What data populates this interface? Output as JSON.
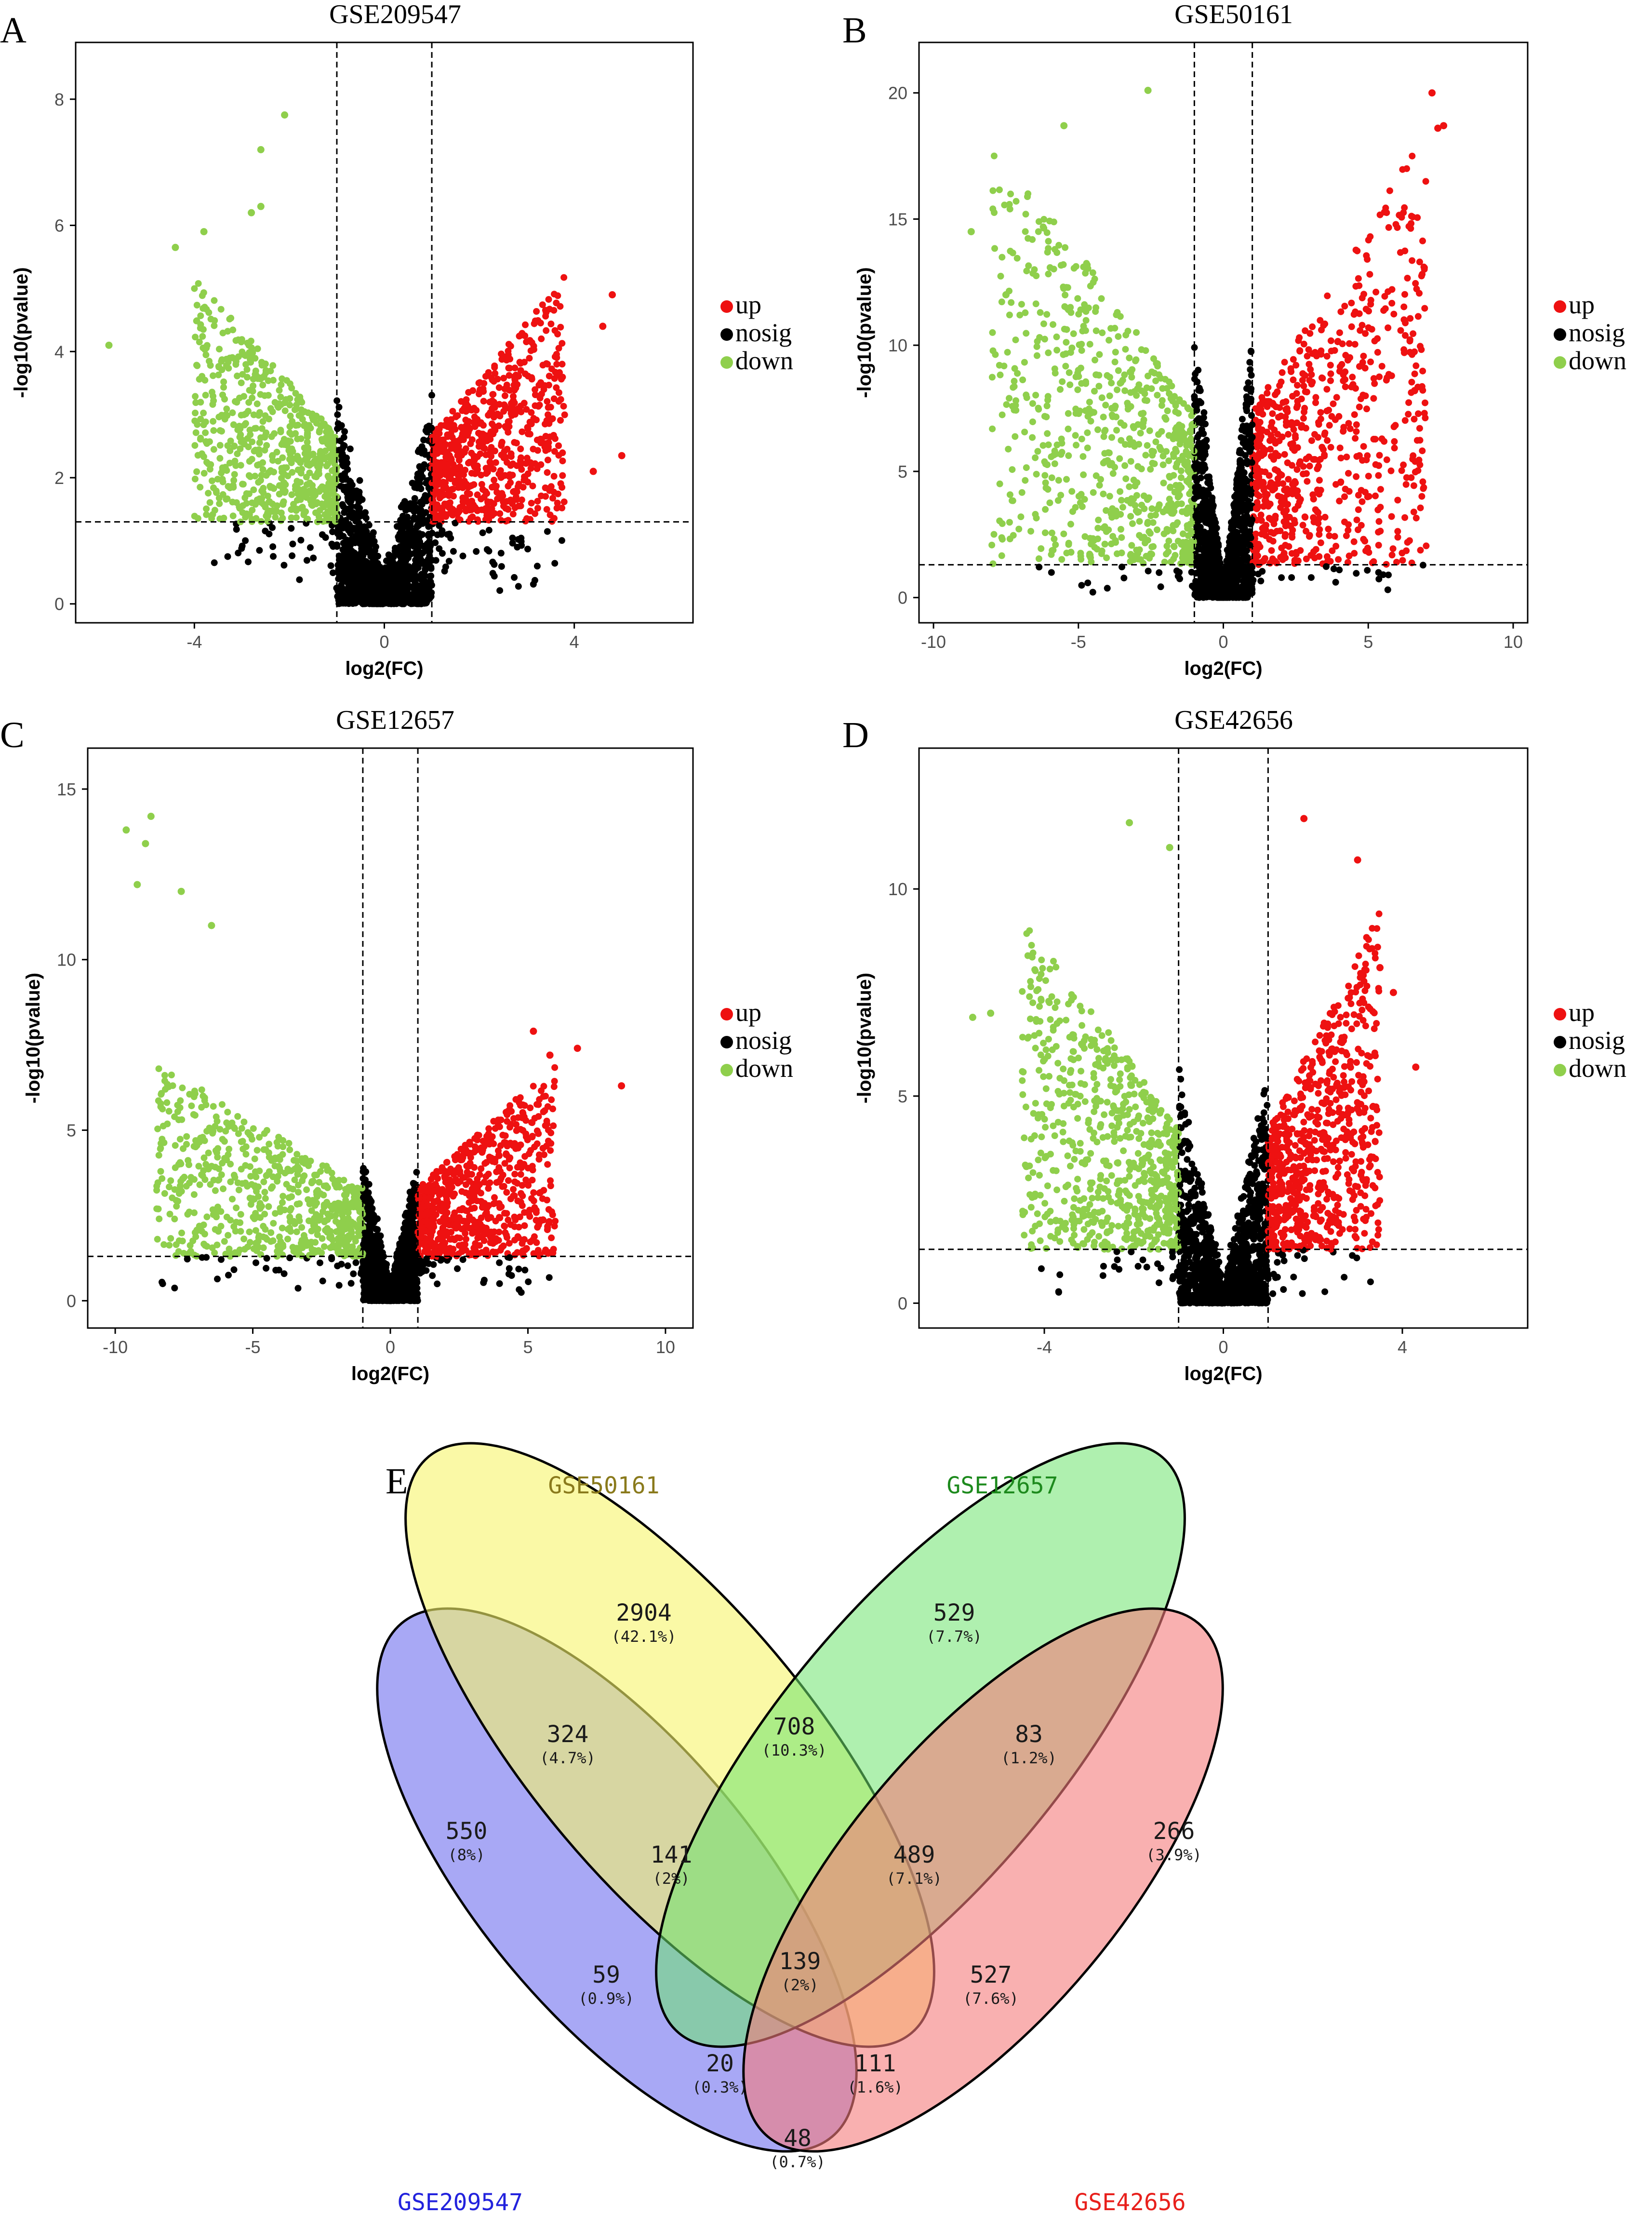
{
  "chart_data": [
    {
      "panel": "A",
      "title": "GSE209547",
      "type": "scatter",
      "xlabel": "log2(FC)",
      "ylabel": "-log10(pvalue)",
      "xlim": [
        -6.5,
        6.5
      ],
      "ylim": [
        -0.3,
        8.9
      ],
      "xticks": [
        -4,
        0,
        4
      ],
      "yticks": [
        0,
        2,
        4,
        6,
        8
      ],
      "thresholds": {
        "log2fc": [
          -1,
          1
        ],
        "neg_log10_p": 1.3
      },
      "legend": [
        "up",
        "nosig",
        "down"
      ],
      "distribution": {
        "ymax": 5.2,
        "xspread_down": 3.0,
        "xspread_up": 2.8
      },
      "extreme_points": [
        {
          "x": -2.1,
          "y": 7.75,
          "group": "down"
        },
        {
          "x": -2.6,
          "y": 7.2,
          "group": "down"
        },
        {
          "x": -2.6,
          "y": 6.3,
          "group": "down"
        },
        {
          "x": -2.8,
          "y": 6.2,
          "group": "down"
        },
        {
          "x": -3.8,
          "y": 5.9,
          "group": "down"
        },
        {
          "x": -4.4,
          "y": 5.65,
          "group": "down"
        },
        {
          "x": -5.8,
          "y": 4.1,
          "group": "down"
        },
        {
          "x": 4.8,
          "y": 4.9,
          "group": "up"
        },
        {
          "x": 4.6,
          "y": 4.4,
          "group": "up"
        },
        {
          "x": 5.0,
          "y": 2.35,
          "group": "up"
        },
        {
          "x": 4.4,
          "y": 2.1,
          "group": "up"
        }
      ]
    },
    {
      "panel": "B",
      "title": "GSE50161",
      "type": "scatter",
      "xlabel": "log2(FC)",
      "ylabel": "-log10(pvalue)",
      "xlim": [
        -10.5,
        10.5
      ],
      "ylim": [
        -1,
        22
      ],
      "xticks": [
        -10,
        -5,
        0,
        5,
        10
      ],
      "yticks": [
        0,
        5,
        10,
        15,
        20
      ],
      "thresholds": {
        "log2fc": [
          -1,
          1
        ],
        "neg_log10_p": 1.3
      },
      "legend": [
        "up",
        "nosig",
        "down"
      ],
      "distribution": {
        "ymax": 18.5,
        "xspread_down": 7.0,
        "xspread_up": 6.0
      },
      "extreme_points": [
        {
          "x": -2.6,
          "y": 20.1,
          "group": "down"
        },
        {
          "x": -5.5,
          "y": 18.7,
          "group": "down"
        },
        {
          "x": -8.7,
          "y": 14.5,
          "group": "down"
        },
        {
          "x": -7.5,
          "y": 12.0,
          "group": "down"
        },
        {
          "x": 7.2,
          "y": 20.0,
          "group": "up"
        },
        {
          "x": 7.6,
          "y": 18.7,
          "group": "up"
        },
        {
          "x": 7.4,
          "y": 18.6,
          "group": "up"
        },
        {
          "x": 6.6,
          "y": 8.2,
          "group": "up"
        }
      ]
    },
    {
      "panel": "C",
      "title": "GSE12657",
      "type": "scatter",
      "xlabel": "log2(FC)",
      "ylabel": "-log10(pvalue)",
      "xlim": [
        -11,
        11
      ],
      "ylim": [
        -0.8,
        16.2
      ],
      "xticks": [
        -10,
        -5,
        0,
        5,
        10
      ],
      "yticks": [
        0,
        5,
        10,
        15
      ],
      "thresholds": {
        "log2fc": [
          -1,
          1
        ],
        "neg_log10_p": 1.3
      },
      "legend": [
        "up",
        "nosig",
        "down"
      ],
      "distribution": {
        "ymax": 7.0,
        "xspread_down": 7.5,
        "xspread_up": 5.0
      },
      "extreme_points": [
        {
          "x": -9.6,
          "y": 13.8,
          "group": "down"
        },
        {
          "x": -8.7,
          "y": 14.2,
          "group": "down"
        },
        {
          "x": -8.9,
          "y": 13.4,
          "group": "down"
        },
        {
          "x": -9.2,
          "y": 12.2,
          "group": "down"
        },
        {
          "x": -7.6,
          "y": 12.0,
          "group": "down"
        },
        {
          "x": -6.5,
          "y": 11.0,
          "group": "down"
        },
        {
          "x": 8.4,
          "y": 6.3,
          "group": "up"
        },
        {
          "x": 6.8,
          "y": 7.4,
          "group": "up"
        },
        {
          "x": 5.2,
          "y": 7.9,
          "group": "up"
        },
        {
          "x": 5.8,
          "y": 7.2,
          "group": "up"
        }
      ]
    },
    {
      "panel": "D",
      "title": "GSE42656",
      "type": "scatter",
      "xlabel": "log2(FC)",
      "ylabel": "-log10(pvalue)",
      "xlim": [
        -6.8,
        6.8
      ],
      "ylim": [
        -0.6,
        13.4
      ],
      "xticks": [
        -4,
        0,
        4
      ],
      "yticks": [
        0,
        5,
        10
      ],
      "thresholds": {
        "log2fc": [
          -1,
          1
        ],
        "neg_log10_p": 1.3
      },
      "legend": [
        "up",
        "nosig",
        "down"
      ],
      "distribution": {
        "ymax": 9.5,
        "xspread_down": 3.5,
        "xspread_up": 2.5
      },
      "extreme_points": [
        {
          "x": -2.1,
          "y": 11.6,
          "group": "down"
        },
        {
          "x": -1.2,
          "y": 11.0,
          "group": "down"
        },
        {
          "x": -5.6,
          "y": 6.9,
          "group": "down"
        },
        {
          "x": -5.2,
          "y": 7.0,
          "group": "down"
        },
        {
          "x": -4.4,
          "y": 3.3,
          "group": "down"
        },
        {
          "x": 1.8,
          "y": 11.7,
          "group": "up"
        },
        {
          "x": 3.0,
          "y": 10.7,
          "group": "up"
        },
        {
          "x": 4.3,
          "y": 5.7,
          "group": "up"
        },
        {
          "x": 3.5,
          "y": 8.1,
          "group": "up"
        },
        {
          "x": 3.8,
          "y": 7.5,
          "group": "up"
        }
      ]
    },
    {
      "panel": "E",
      "type": "venn",
      "sets": [
        "GSE209547",
        "GSE50161",
        "GSE12657",
        "GSE42656"
      ],
      "set_colors": {
        "GSE209547": "#2222dd",
        "GSE50161": "#8a7a1c",
        "GSE12657": "#1d8a1d",
        "GSE42656": "#e8201c"
      },
      "regions": [
        {
          "sets": [
            "GSE50161"
          ],
          "count": "2904",
          "percent": "(42.1%)"
        },
        {
          "sets": [
            "GSE12657"
          ],
          "count": "529",
          "percent": "(7.7%)"
        },
        {
          "sets": [
            "GSE209547",
            "GSE50161"
          ],
          "count": "324",
          "percent": "(4.7%)"
        },
        {
          "sets": [
            "GSE50161",
            "GSE12657"
          ],
          "count": "708",
          "percent": "(10.3%)"
        },
        {
          "sets": [
            "GSE12657",
            "GSE42656"
          ],
          "count": "83",
          "percent": "(1.2%)"
        },
        {
          "sets": [
            "GSE209547"
          ],
          "count": "550",
          "percent": "(8%)"
        },
        {
          "sets": [
            "GSE42656"
          ],
          "count": "266",
          "percent": "(3.9%)"
        },
        {
          "sets": [
            "GSE209547",
            "GSE50161",
            "GSE12657"
          ],
          "count": "141",
          "percent": "(2%)"
        },
        {
          "sets": [
            "GSE50161",
            "GSE12657",
            "GSE42656"
          ],
          "count": "489",
          "percent": "(7.1%)"
        },
        {
          "sets": [
            "GSE209547",
            "GSE12657"
          ],
          "count": "59",
          "percent": "(0.9%)"
        },
        {
          "sets": [
            "GSE209547",
            "GSE50161",
            "GSE12657",
            "GSE42656"
          ],
          "count": "139",
          "percent": "(2%)"
        },
        {
          "sets": [
            "GSE50161",
            "GSE42656"
          ],
          "count": "527",
          "percent": "(7.6%)"
        },
        {
          "sets": [
            "GSE209547",
            "GSE12657",
            "GSE42656"
          ],
          "count": "20",
          "percent": "(0.3%)"
        },
        {
          "sets": [
            "GSE209547",
            "GSE50161",
            "GSE42656"
          ],
          "count": "111",
          "percent": "(1.6%)"
        },
        {
          "sets": [
            "GSE209547",
            "GSE42656"
          ],
          "count": "48",
          "percent": "(0.7%)"
        }
      ]
    }
  ],
  "legend_labels": {
    "up": "up",
    "nosig": "nosig",
    "down": "down"
  },
  "colors": {
    "up": "#ee1111",
    "nosig": "#000000",
    "down": "#8fcf4c"
  }
}
